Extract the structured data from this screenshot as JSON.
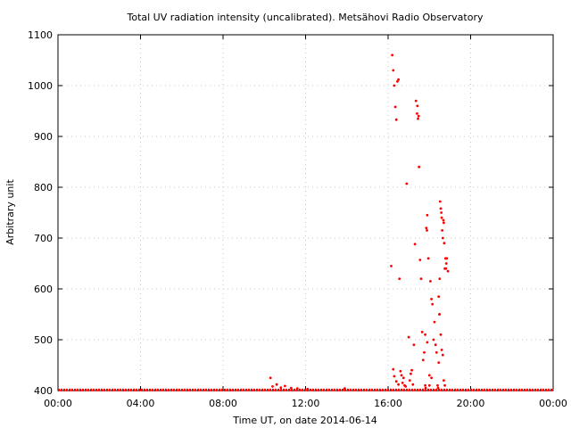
{
  "chart_data": {
    "type": "scatter",
    "title": "Total UV radiation intensity (uncalibrated). Metsähovi Radio Observatory",
    "xlabel": "Time UT, on date 2014-06-14",
    "ylabel": "Arbitrary unit",
    "xlim": [
      0,
      24
    ],
    "ylim": [
      400,
      1100
    ],
    "x_ticks": [
      {
        "value": 0,
        "label": "00:00"
      },
      {
        "value": 4,
        "label": "04:00"
      },
      {
        "value": 8,
        "label": "08:00"
      },
      {
        "value": 12,
        "label": "12:00"
      },
      {
        "value": 16,
        "label": "16:00"
      },
      {
        "value": 20,
        "label": "20:00"
      },
      {
        "value": 24,
        "label": "00:00"
      }
    ],
    "y_ticks": [
      400,
      500,
      600,
      700,
      800,
      900,
      1000,
      1100
    ],
    "grid": true,
    "point_color": "#ff0000",
    "baseline": {
      "value": 401,
      "x_start": 0,
      "x_end": 24
    },
    "series": [
      {
        "x": [
          10.3,
          10.4,
          10.6,
          10.8,
          11.0,
          11.3,
          11.6,
          12.1,
          13.9,
          16.15,
          16.2,
          16.25,
          16.3,
          16.35,
          16.4,
          16.45,
          16.5,
          16.55,
          16.6,
          16.65,
          16.7,
          16.75,
          16.8,
          16.85,
          16.9,
          17.0,
          17.05,
          17.1,
          17.15,
          17.2,
          17.25,
          17.3,
          17.35,
          17.4,
          17.42,
          17.45,
          17.48,
          17.5,
          17.55,
          17.6,
          17.65,
          17.7,
          17.75,
          17.8,
          17.82,
          17.85,
          17.88,
          17.9,
          17.95,
          18.0,
          18.05,
          18.1,
          18.15,
          18.2,
          18.25,
          18.3,
          18.35,
          18.4,
          18.42,
          18.45,
          18.48,
          18.5,
          18.52,
          18.55,
          18.58,
          18.6,
          18.62,
          18.65,
          18.68,
          18.7,
          18.72,
          18.75,
          18.78,
          18.8,
          18.82,
          18.85,
          18.9,
          16.25,
          16.3,
          16.4,
          16.5,
          17.8,
          17.9,
          18.0,
          18.1,
          18.45,
          18.5,
          18.55,
          18.6,
          18.65,
          18.7,
          18.75
        ],
        "y": [
          425,
          408,
          412,
          406,
          409,
          405,
          404,
          403,
          404,
          645,
          1060,
          1030,
          1000,
          958,
          933,
          1008,
          1012,
          620,
          438,
          430,
          415,
          425,
          410,
          408,
          807,
          505,
          420,
          433,
          440,
          412,
          490,
          688,
          970,
          945,
          960,
          935,
          940,
          840,
          657,
          620,
          515,
          460,
          475,
          410,
          405,
          720,
          715,
          745,
          660,
          410,
          615,
          580,
          570,
          500,
          535,
          490,
          475,
          410,
          405,
          455,
          550,
          620,
          772,
          758,
          750,
          740,
          715,
          700,
          735,
          730,
          690,
          640,
          660,
          640,
          650,
          660,
          635,
          442,
          428,
          418,
          412,
          510,
          495,
          430,
          425,
          585,
          550,
          510,
          480,
          470,
          420,
          410
        ]
      }
    ]
  }
}
